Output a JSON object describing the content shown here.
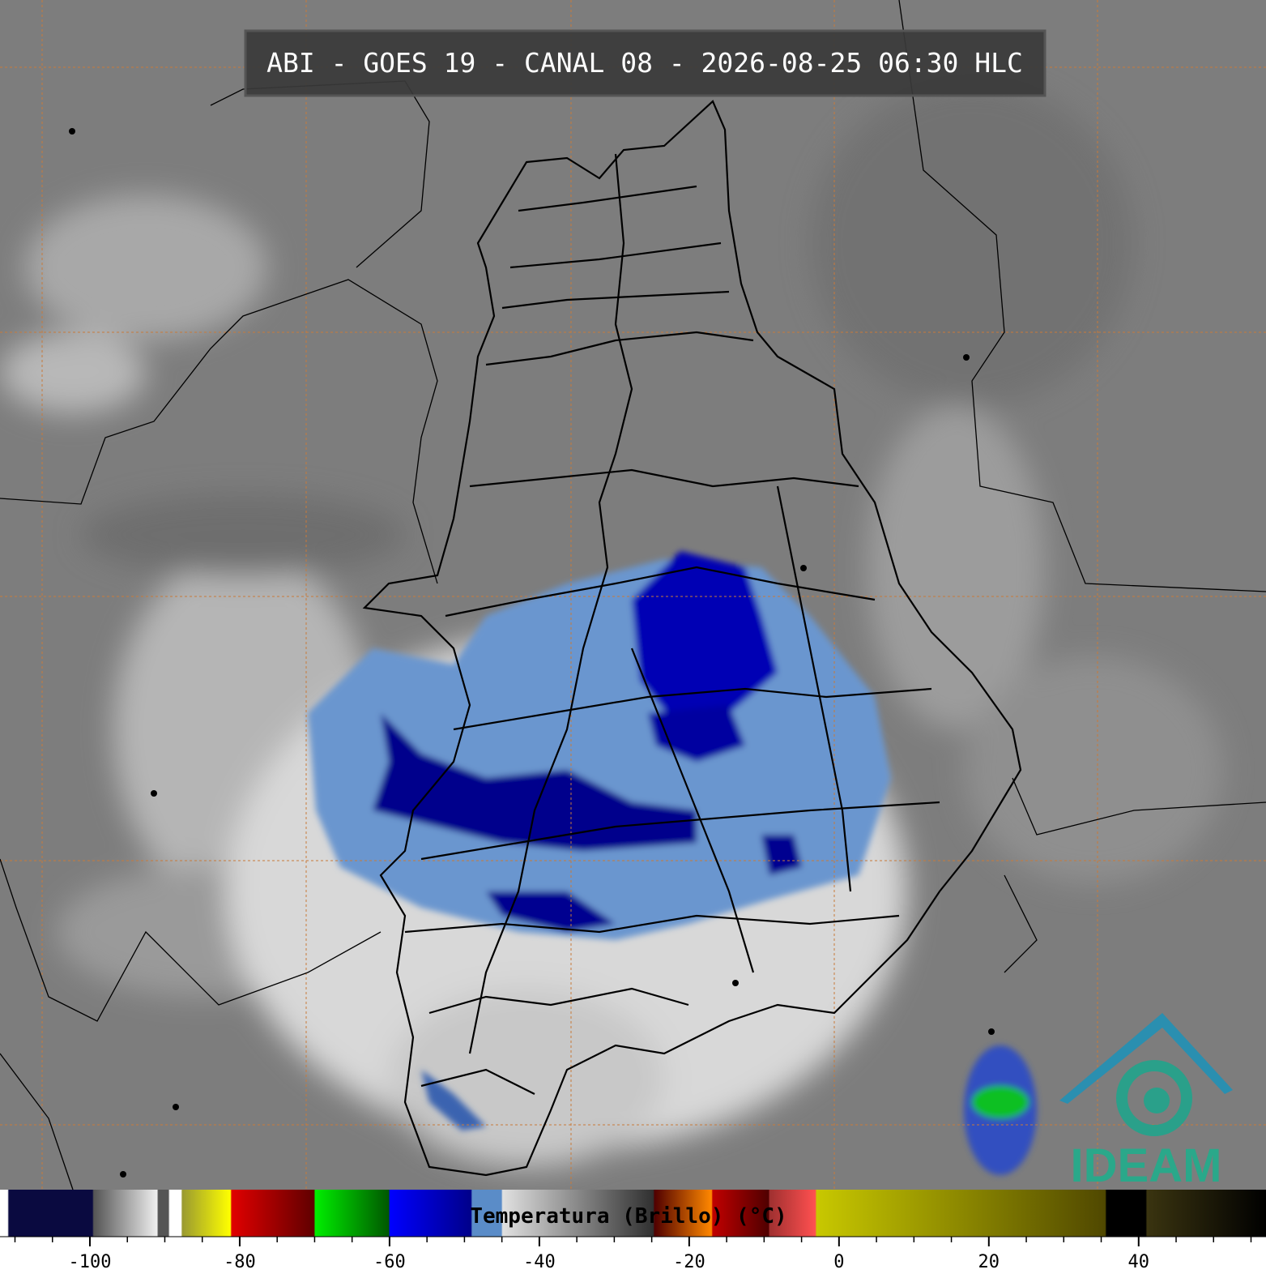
{
  "title": "ABI - GOES 19 - CANAL 08 - 2026-08-25 06:30 HLC",
  "colorbar": {
    "label": "Temperatura (Brillo) (°C)",
    "lim": [
      -112,
      57
    ],
    "ticks": [
      -100,
      -80,
      -60,
      -40,
      -20,
      0,
      20,
      40
    ],
    "minor_ticks": [
      -110,
      -105,
      -95,
      -90,
      -85,
      -75,
      -70,
      -65,
      -55,
      -50,
      -45,
      -35,
      -30,
      -25,
      -15,
      -10,
      -5,
      5,
      10,
      15,
      25,
      30,
      35,
      45,
      50,
      55
    ]
  },
  "logo": "IDEAM"
}
